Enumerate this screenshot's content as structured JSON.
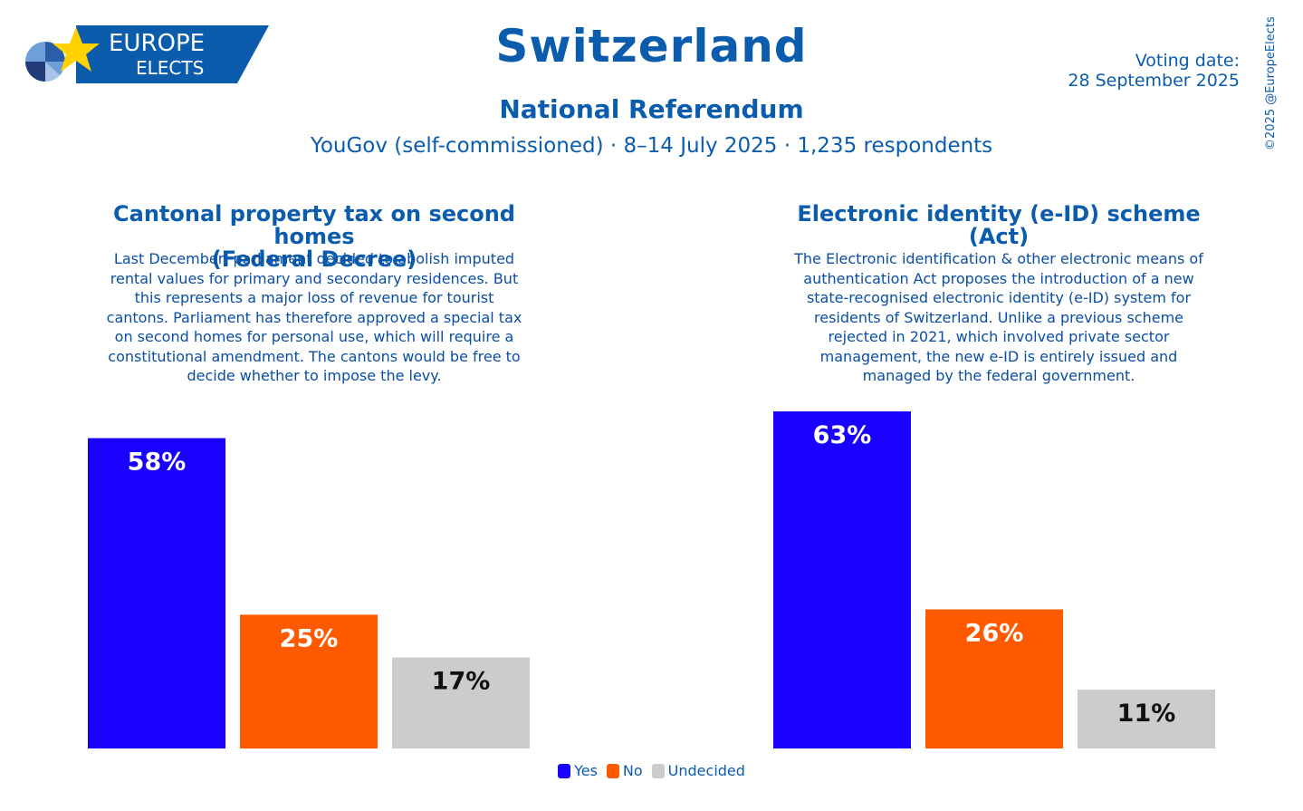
{
  "header": {
    "logo_line1": "EUROPE",
    "logo_line2": "ELECTS",
    "title": "Switzerland",
    "subtitle": "National Referendum",
    "poll_info": "YouGov (self-commissioned) · 8–14 July 2025 · 1,235 respondents",
    "voting_date_label": "Voting date:",
    "voting_date": "28 September 2025",
    "copyright": "©2025 @EuropeElects"
  },
  "colors": {
    "yes": "#1a00ff",
    "no": "#ff5a00",
    "undecided": "#cccccc",
    "brand": "#0b5cad"
  },
  "questions": [
    {
      "title_line1": "Cantonal property tax on second homes",
      "title_line2": "(Federal Decree)",
      "description": "Last December, parliament decided to abolish imputed rental values for primary and secondary residences. But this represents a major loss of revenue for tourist cantons. Parliament has therefore approved a special tax on second homes for personal use, which will require a constitutional amendment. The cantons would be free to decide whether to impose the levy."
    },
    {
      "title_line1": "Electronic identity (e-ID) scheme",
      "title_line2": "(Act)",
      "description": "The Electronic identification & other electronic means of authentication Act proposes the introduction of a new state-recognised electronic identity (e-ID) system for residents of Switzerland. Unlike a previous scheme rejected in 2021, which involved private sector management, the new e-ID is entirely issued and managed by the federal government."
    }
  ],
  "chart_data": [
    {
      "type": "bar",
      "title": "Cantonal property tax on second homes (Federal Decree)",
      "categories": [
        "Yes",
        "No",
        "Undecided"
      ],
      "values": [
        58,
        25,
        17
      ],
      "labels": [
        "58%",
        "25%",
        "17%"
      ],
      "ylim": [
        0,
        63
      ],
      "grid": false,
      "legend": "bottom-center"
    },
    {
      "type": "bar",
      "title": "Electronic identity (e-ID) scheme (Act)",
      "categories": [
        "Yes",
        "No",
        "Undecided"
      ],
      "values": [
        63,
        26,
        11
      ],
      "labels": [
        "63%",
        "26%",
        "11%"
      ],
      "ylim": [
        0,
        63
      ],
      "grid": false,
      "legend": "bottom-center"
    }
  ],
  "legend": {
    "items": [
      "Yes",
      "No",
      "Undecided"
    ]
  }
}
